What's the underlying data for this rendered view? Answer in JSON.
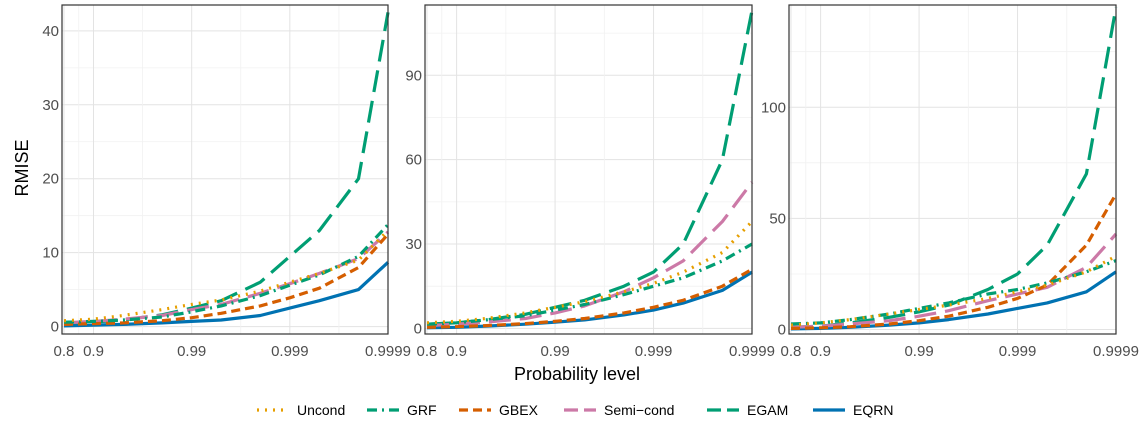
{
  "figure": {
    "xlabel": "Probability level",
    "ylabel": "RMISE"
  },
  "legend": {
    "entries": [
      {
        "name": "Uncond",
        "color": "#E69F00",
        "dash": "dot"
      },
      {
        "name": "GRF",
        "color": "#009E73",
        "dash": "dashdot"
      },
      {
        "name": "GBEX",
        "color": "#D55E00",
        "dash": "dash"
      },
      {
        "name": "Semi−cond",
        "color": "#CC79A7",
        "dash": "longdash"
      },
      {
        "name": "EGAM",
        "color": "#009E73",
        "dash": "longdash"
      },
      {
        "name": "EQRN",
        "color": "#0072B2",
        "dash": "solid"
      }
    ]
  },
  "chart_data": [
    {
      "type": "line",
      "xscale": "-log10(1-p)",
      "xticks": [
        0.8,
        0.9,
        0.99,
        0.999,
        0.9999
      ],
      "xtick_labels": [
        "0.8",
        "0.9",
        "0.99",
        "0.999",
        "0.9999"
      ],
      "x": [
        0.8,
        0.9,
        0.95,
        0.98,
        0.99,
        0.995,
        0.998,
        0.999,
        0.9995,
        0.9998,
        0.9999
      ],
      "ylim": [
        -1,
        43.5
      ],
      "yticks": [
        0,
        10,
        20,
        30,
        40
      ],
      "ylabel": "RMISE",
      "grid": true,
      "series": [
        {
          "name": "Uncond",
          "values": [
            0.8,
            1.0,
            1.5,
            2.3,
            3.0,
            3.6,
            4.8,
            6.0,
            7.2,
            9.0,
            13.0
          ]
        },
        {
          "name": "GRF",
          "values": [
            0.6,
            0.7,
            0.9,
            1.3,
            2.0,
            2.8,
            4.2,
            5.6,
            7.0,
            9.5,
            13.8
          ]
        },
        {
          "name": "GBEX",
          "values": [
            0.3,
            0.4,
            0.5,
            0.8,
            1.2,
            1.8,
            2.8,
            3.9,
            5.2,
            8.0,
            12.5
          ]
        },
        {
          "name": "Semi−cond",
          "values": [
            0.5,
            0.7,
            1.0,
            1.5,
            2.3,
            3.0,
            4.5,
            5.8,
            7.2,
            9.2,
            12.8
          ]
        },
        {
          "name": "EGAM",
          "values": [
            0.5,
            0.6,
            0.9,
            1.6,
            2.5,
            3.5,
            6.0,
            9.5,
            13.0,
            20.0,
            42.5
          ]
        },
        {
          "name": "EQRN",
          "values": [
            0.1,
            0.2,
            0.3,
            0.5,
            0.7,
            0.9,
            1.5,
            2.5,
            3.5,
            5.0,
            8.7
          ]
        }
      ]
    },
    {
      "type": "line",
      "xscale": "-log10(1-p)",
      "xticks": [
        0.8,
        0.9,
        0.99,
        0.999,
        0.9999
      ],
      "xtick_labels": [
        "0.8",
        "0.9",
        "0.99",
        "0.999",
        "0.9999"
      ],
      "x": [
        0.8,
        0.9,
        0.95,
        0.98,
        0.99,
        0.995,
        0.998,
        0.999,
        0.9995,
        0.9998,
        0.9999
      ],
      "ylim": [
        -2,
        115
      ],
      "yticks": [
        0,
        30,
        60,
        90
      ],
      "grid": true,
      "series": [
        {
          "name": "Uncond",
          "values": [
            2.0,
            2.5,
            3.5,
            5.5,
            7.5,
            9.5,
            13.0,
            16.0,
            20.0,
            27.0,
            38.0
          ]
        },
        {
          "name": "GRF",
          "values": [
            1.5,
            2.0,
            3.0,
            4.5,
            6.5,
            8.5,
            12.0,
            15.0,
            18.0,
            24.0,
            30.0
          ]
        },
        {
          "name": "GBEX",
          "values": [
            0.4,
            0.6,
            1.0,
            1.7,
            2.5,
            3.5,
            5.5,
            7.5,
            10.0,
            15.0,
            21.0
          ]
        },
        {
          "name": "Semi−cond",
          "values": [
            1.0,
            1.5,
            2.2,
            3.5,
            5.5,
            8.0,
            13.0,
            18.0,
            24.0,
            38.0,
            52.0
          ]
        },
        {
          "name": "EGAM",
          "values": [
            1.5,
            2.0,
            3.0,
            5.0,
            7.5,
            10.0,
            15.0,
            20.0,
            30.0,
            60.0,
            113.0
          ]
        },
        {
          "name": "EQRN",
          "values": [
            0.2,
            0.4,
            0.8,
            1.5,
            2.2,
            3.0,
            4.8,
            6.5,
            9.0,
            13.5,
            20.0
          ]
        }
      ]
    },
    {
      "type": "line",
      "xscale": "-log10(1-p)",
      "xticks": [
        0.8,
        0.9,
        0.99,
        0.999,
        0.9999
      ],
      "xtick_labels": [
        "0.8",
        "0.9",
        "0.99",
        "0.999",
        "0.9999"
      ],
      "x": [
        0.8,
        0.9,
        0.95,
        0.98,
        0.99,
        0.995,
        0.998,
        0.999,
        0.9995,
        0.9998,
        0.9999
      ],
      "ylim": [
        -2,
        146
      ],
      "yticks": [
        0,
        50,
        100
      ],
      "grid": true,
      "series": [
        {
          "name": "Uncond",
          "values": [
            2.0,
            3.0,
            4.5,
            7.0,
            9.0,
            11.0,
            14.0,
            17.0,
            20.0,
            26.0,
            33.0
          ]
        },
        {
          "name": "GRF",
          "values": [
            2.5,
            3.0,
            4.5,
            7.0,
            9.5,
            12.0,
            16.0,
            18.0,
            21.0,
            26.0,
            31.0
          ]
        },
        {
          "name": "GBEX",
          "values": [
            0.5,
            0.8,
            1.3,
            2.5,
            4.0,
            6.0,
            10.0,
            14.0,
            20.0,
            38.0,
            61.0
          ]
        },
        {
          "name": "Semi−cond",
          "values": [
            1.0,
            1.5,
            2.5,
            4.0,
            6.0,
            8.5,
            13.0,
            16.0,
            19.0,
            28.0,
            43.0
          ]
        },
        {
          "name": "EGAM",
          "values": [
            1.0,
            1.5,
            3.0,
            5.5,
            8.0,
            11.0,
            18.0,
            25.0,
            38.0,
            70.0,
            145.0
          ]
        },
        {
          "name": "EQRN",
          "values": [
            0.3,
            0.5,
            1.0,
            2.0,
            3.0,
            4.5,
            7.0,
            9.5,
            12.0,
            17.0,
            26.0
          ]
        }
      ]
    }
  ]
}
